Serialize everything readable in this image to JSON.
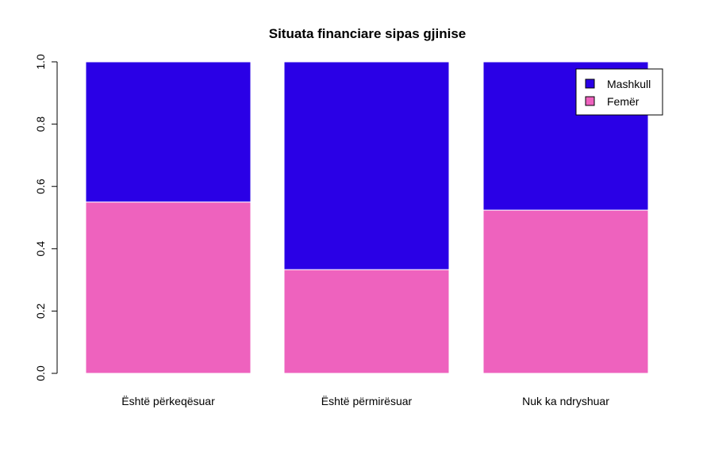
{
  "chart_data": {
    "type": "bar",
    "stacked": true,
    "title": "Situata financiare sipas gjinise",
    "categories": [
      "Është përkeqësuar",
      "Është përmirësuar",
      "Nuk ka ndryshuar"
    ],
    "series": [
      {
        "name": "Femër",
        "color": "#EE62BE",
        "values": [
          0.55,
          0.333,
          0.524
        ]
      },
      {
        "name": "Mashkull",
        "color": "#2A00E6",
        "values": [
          0.45,
          0.667,
          0.476
        ]
      }
    ],
    "ylim": [
      0,
      1
    ],
    "yticks": [
      "0.0",
      "0.2",
      "0.4",
      "0.6",
      "0.8",
      "1.0"
    ],
    "legend": {
      "position": "top-right",
      "entries": [
        "Mashkull",
        "Femër"
      ]
    },
    "grid": false
  }
}
